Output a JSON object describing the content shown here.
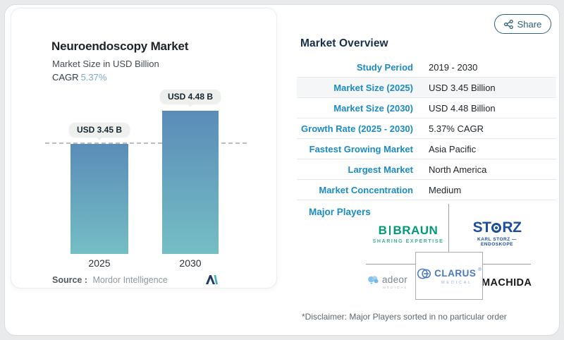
{
  "header": {
    "share_label": "Share"
  },
  "left_panel": {
    "title": "Neuroendoscopy Market",
    "subtitle": "Market Size in USD Billion",
    "cagr_label": "CAGR",
    "cagr_value": "5.37%",
    "source_label": "Source :",
    "source_value": "Mordor Intelligence",
    "logo": "mordor-intelligence-mark"
  },
  "chart_data": {
    "type": "bar",
    "title": "Neuroendoscopy Market",
    "subtitle": "Market Size in USD Billion",
    "unit": "USD Billion",
    "categories": [
      "2025",
      "2030"
    ],
    "values": [
      3.45,
      4.48
    ],
    "bar_labels": [
      "USD 3.45 B",
      "USD 4.48 B"
    ],
    "cagr": "5.37%",
    "ylim": [
      0,
      4.48
    ],
    "reference_line": {
      "value": 3.45,
      "style": "dashed"
    },
    "legend": false,
    "gridlines": false,
    "colors": {
      "bar_gradient_top": "#5a8cb8",
      "bar_gradient_bottom": "#75bec5",
      "label_pill_bg": "#eef0ee"
    }
  },
  "overview": {
    "title": "Market Overview",
    "rows": [
      {
        "label": "Study Period",
        "value": "2019 - 2030"
      },
      {
        "label": "Market Size (2025)",
        "value": "USD 3.45 Billion"
      },
      {
        "label": "Market Size (2030)",
        "value": "USD 4.48 Billion"
      },
      {
        "label": "Growth Rate (2025 - 2030)",
        "value": "5.37% CAGR"
      },
      {
        "label": "Fastest Growing Market",
        "value": "Asia Pacific"
      },
      {
        "label": "Largest Market",
        "value": "North America"
      },
      {
        "label": "Market Concentration",
        "value": "Medium"
      }
    ]
  },
  "major_players": {
    "title": "Major Players",
    "disclaimer": "*Disclaimer: Major Players sorted in no particular order",
    "logos": {
      "bbraun": {
        "b": "B",
        "name": "BRAUN",
        "tagline": "SHARING EXPERTISE",
        "color": "#009a74"
      },
      "storz": {
        "st": "ST",
        "rz": "RZ",
        "subline": "KARL STORZ — ENDOSKOPE",
        "color": "#1c4da0"
      },
      "clarus": {
        "name": "CLARUS",
        "reg": "®",
        "subline": "MEDICAL",
        "color": "#4a79c0"
      },
      "adeor": {
        "name": "adeor",
        "subline": "MEDICAL"
      },
      "machida": {
        "name": "MACHIDA"
      }
    }
  }
}
